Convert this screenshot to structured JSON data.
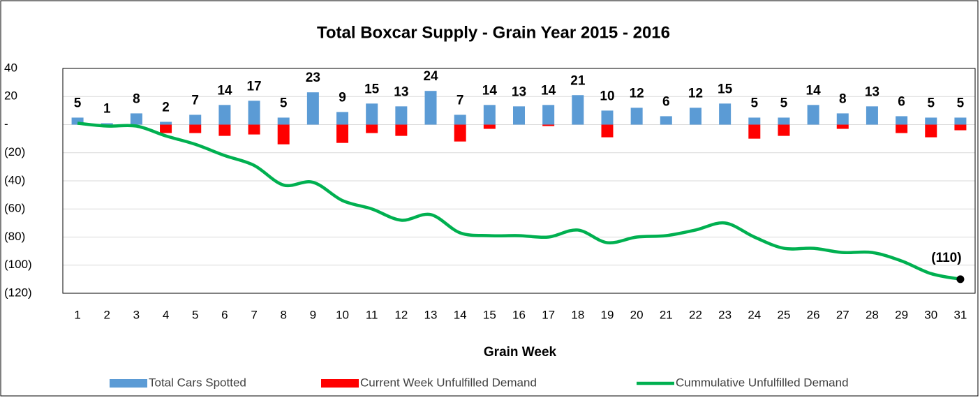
{
  "chart_data": {
    "type": "bar",
    "title": "Total Boxcar Supply - Grain Year 2015 - 2016",
    "x_label": "Grain Week",
    "categories": [
      1,
      2,
      3,
      4,
      5,
      6,
      7,
      8,
      9,
      10,
      11,
      12,
      13,
      14,
      15,
      16,
      17,
      18,
      19,
      20,
      21,
      22,
      23,
      24,
      25,
      26,
      27,
      28,
      29,
      30,
      31
    ],
    "series": [
      {
        "name": "Total Cars Spotted",
        "type": "bar",
        "color": "#5b9bd5",
        "values": [
          5,
          1,
          8,
          2,
          7,
          14,
          17,
          5,
          23,
          9,
          15,
          13,
          24,
          7,
          14,
          13,
          14,
          21,
          10,
          12,
          6,
          12,
          15,
          5,
          5,
          14,
          8,
          13,
          6,
          5,
          5
        ]
      },
      {
        "name": "Current Week Unfulfilled Demand",
        "type": "bar",
        "color": "#ff0000",
        "values": [
          0,
          0,
          0,
          -6,
          -6,
          -8,
          -7,
          -14,
          0,
          -13,
          -6,
          -8,
          0,
          -12,
          -3,
          0,
          -1,
          0,
          -9,
          0,
          0,
          0,
          0,
          -10,
          -8,
          0,
          -3,
          0,
          -6,
          -9,
          -4
        ]
      },
      {
        "name": "Cummulative Unfulfilled Demand",
        "type": "line",
        "color": "#00b050",
        "values": [
          1,
          -1,
          -1,
          -8,
          -14,
          -22,
          -29,
          -43,
          -41,
          -54,
          -60,
          -68,
          -64,
          -77,
          -79,
          -79,
          -80,
          -75,
          -84,
          -80,
          -79,
          -75,
          -70,
          -80,
          -88,
          -88,
          -91,
          -91,
          -97,
          -106,
          -110
        ],
        "value_labels": [
          null,
          null,
          null,
          null,
          null,
          null,
          null,
          null,
          null,
          null,
          null,
          null,
          null,
          null,
          null,
          null,
          null,
          null,
          null,
          null,
          null,
          null,
          null,
          null,
          null,
          null,
          null,
          null,
          null,
          null,
          "(110)"
        ]
      }
    ],
    "ylim": [
      -120,
      40
    ],
    "yticks": [
      40,
      20,
      {
        "value": 0,
        "label": "-"
      },
      {
        "value": -20,
        "label": "(20)"
      },
      {
        "value": -40,
        "label": "(40)"
      },
      {
        "value": -60,
        "label": "(60)"
      },
      {
        "value": -80,
        "label": "(80)"
      },
      {
        "value": -100,
        "label": "(100)"
      },
      {
        "value": -120,
        "label": "(120)"
      }
    ],
    "grid": true,
    "legend": "bottom"
  }
}
